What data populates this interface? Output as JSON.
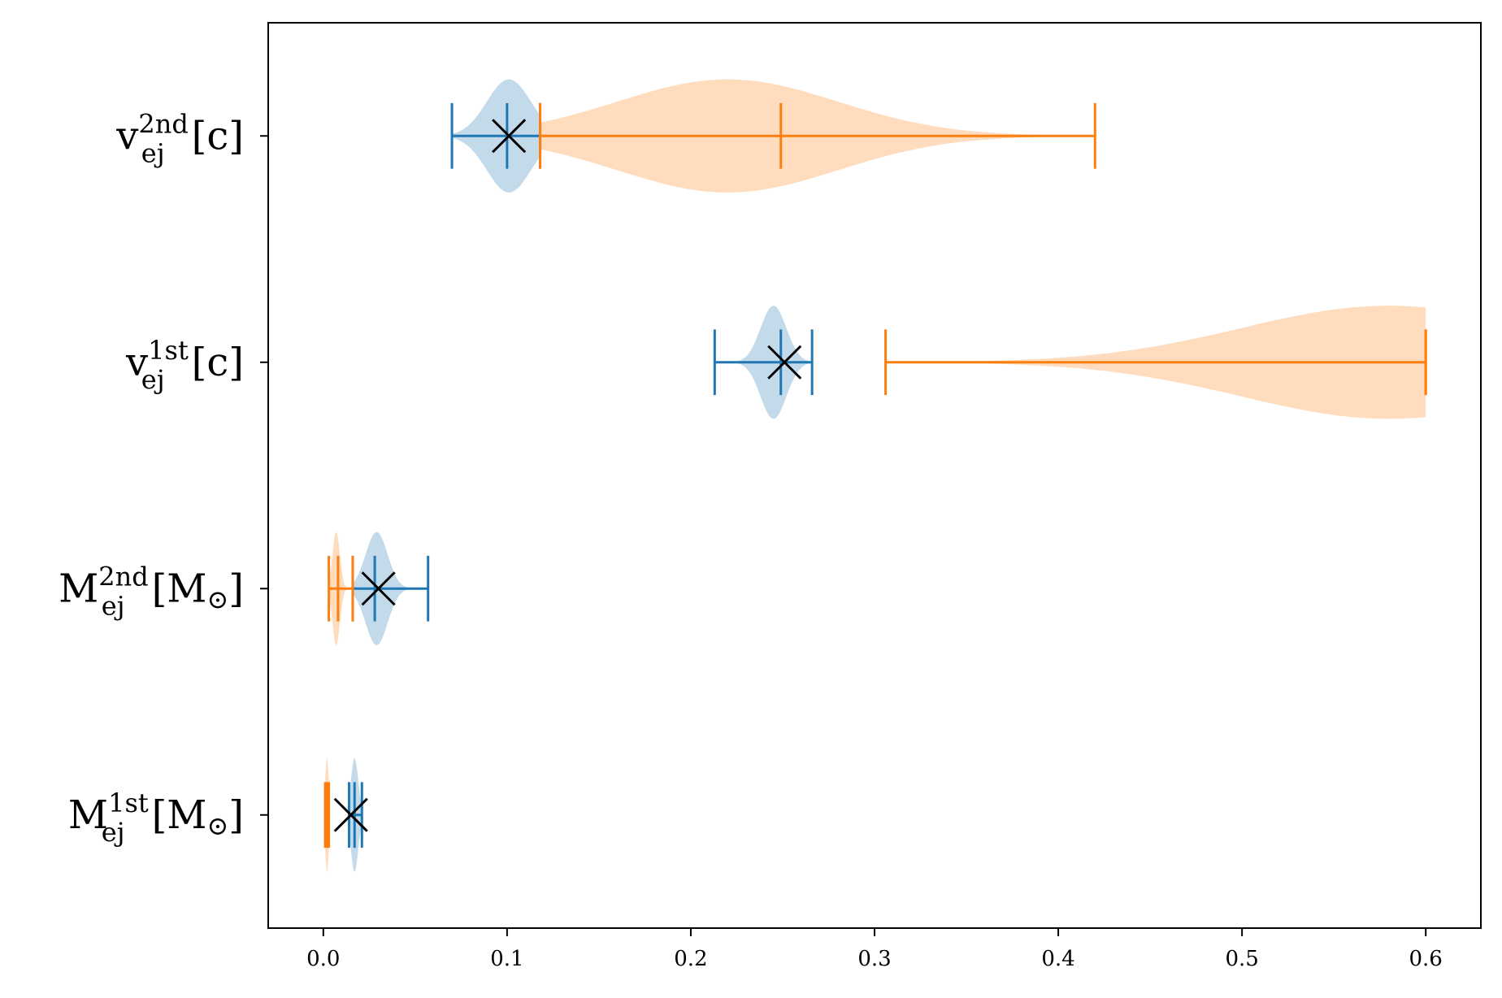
{
  "chart_data": {
    "type": "violin",
    "orientation": "horizontal",
    "title": "",
    "xlabel": "",
    "ylabel": "",
    "xlim": [
      -0.03,
      0.63
    ],
    "x_ticks": [
      0.0,
      0.1,
      0.2,
      0.3,
      0.4,
      0.5,
      0.6
    ],
    "x_tick_labels": [
      "0.0",
      "0.1",
      "0.2",
      "0.3",
      "0.4",
      "0.5",
      "0.6"
    ],
    "grid": false,
    "categories": [
      {
        "main": "M",
        "sub": "ej",
        "sup": "1st",
        "unit": "[M",
        "unit_sub": "⊙",
        "unit_close": "]"
      },
      {
        "main": "M",
        "sub": "ej",
        "sup": "2nd",
        "unit": "[M",
        "unit_sub": "⊙",
        "unit_close": "]"
      },
      {
        "main": "v",
        "sub": "ej",
        "sup": "1st",
        "unit": "[c]",
        "unit_sub": "",
        "unit_close": ""
      },
      {
        "main": "v",
        "sub": "ej",
        "sup": "2nd",
        "unit": "[c]",
        "unit_sub": "",
        "unit_close": ""
      }
    ],
    "series": [
      {
        "color": "#1f77b4",
        "fill": "#b9d3e8",
        "violins": [
          {
            "min": 0.014,
            "median": 0.017,
            "max": 0.021,
            "peak": 0.017,
            "spread": 0.002,
            "max_width": 0.25
          },
          {
            "min": 0.016,
            "median": 0.028,
            "max": 0.057,
            "peak": 0.029,
            "spread": 0.006,
            "max_width": 0.25
          },
          {
            "min": 0.213,
            "median": 0.249,
            "max": 0.266,
            "peak": 0.245,
            "spread": 0.007,
            "max_width": 0.25
          },
          {
            "min": 0.07,
            "median": 0.1,
            "max": 0.118,
            "peak": 0.101,
            "spread": 0.012,
            "max_width": 0.25
          }
        ]
      },
      {
        "color": "#ff7f0e",
        "fill": "#fed6b2",
        "violins": [
          {
            "min": 0.001,
            "median": 0.002,
            "max": 0.003,
            "peak": 0.002,
            "spread": 0.001,
            "max_width": 0.25
          },
          {
            "min": 0.003,
            "median": 0.008,
            "max": 0.016,
            "peak": 0.007,
            "spread": 0.002,
            "max_width": 0.25
          },
          {
            "min": 0.306,
            "median": 0.6,
            "max": 0.6,
            "peak": 0.58,
            "spread": 0.08,
            "max_width": 0.25
          },
          {
            "min": 0.118,
            "median": 0.249,
            "max": 0.42,
            "peak": 0.22,
            "spread": 0.06,
            "max_width": 0.25
          }
        ]
      }
    ],
    "markers": {
      "symbol": "×",
      "color": "#000000",
      "values": [
        0.015,
        0.03,
        0.251,
        0.101
      ]
    }
  }
}
